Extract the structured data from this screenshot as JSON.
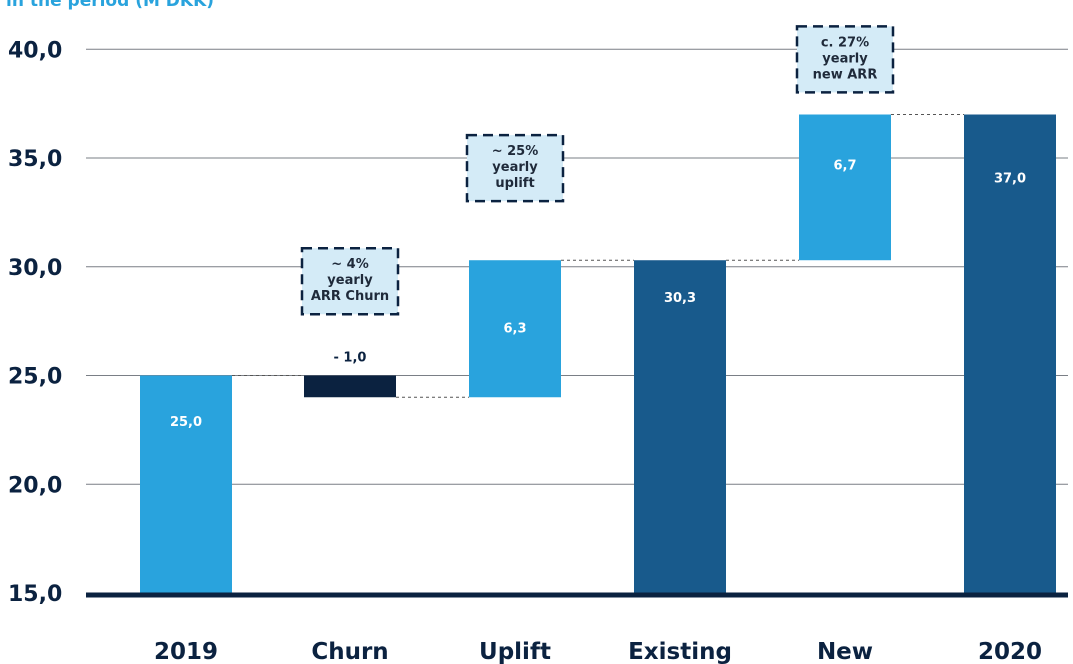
{
  "subtitle": "in the period (M DKK)",
  "colors": {
    "light_bar": "#29a3dd",
    "dark_bar": "#185a8c",
    "churn_bar": "#0b2240",
    "axis": "#0b2240",
    "grid": "#7a7f86",
    "annotation_fill": "#d4ebf7",
    "annotation_border": "#0b2240"
  },
  "chart_data": {
    "type": "bar",
    "subtype": "waterfall",
    "categories": [
      "2019",
      "Churn",
      "Uplift",
      "Existing",
      "New",
      "2020"
    ],
    "bars": [
      {
        "category": "2019",
        "base": 15.0,
        "top": 25.0,
        "label": "25,0",
        "style": "light"
      },
      {
        "category": "Churn",
        "base": 24.0,
        "top": 25.0,
        "label": "- 1,0",
        "style": "churn"
      },
      {
        "category": "Uplift",
        "base": 24.0,
        "top": 30.3,
        "label": "6,3",
        "style": "light"
      },
      {
        "category": "Existing",
        "base": 15.0,
        "top": 30.3,
        "label": "30,3",
        "style": "dark"
      },
      {
        "category": "New",
        "base": 30.3,
        "top": 37.0,
        "label": "6,7",
        "style": "light"
      },
      {
        "category": "2020",
        "base": 15.0,
        "top": 37.0,
        "label": "37,0",
        "style": "dark"
      }
    ],
    "connectors": [
      {
        "from": 0,
        "to": 1,
        "y": 25.0
      },
      {
        "from": 1,
        "to": 2,
        "y": 24.0
      },
      {
        "from": 2,
        "to": 3,
        "y": 30.3
      },
      {
        "from": 3,
        "to": 4,
        "y": 30.3
      },
      {
        "from": 4,
        "to": 5,
        "y": 37.0
      }
    ],
    "annotations": [
      {
        "category": "Churn",
        "lines": [
          "~ 4%",
          "yearly",
          "ARR Churn"
        ]
      },
      {
        "category": "Uplift",
        "lines": [
          "~ 25%",
          "yearly",
          "uplift"
        ]
      },
      {
        "category": "New",
        "lines": [
          "c. 27%",
          "yearly",
          "new ARR"
        ]
      }
    ],
    "yticks": [
      "15,0",
      "20,0",
      "25,0",
      "30,0",
      "35,0",
      "40,0"
    ],
    "ylim": [
      15,
      40
    ],
    "grid": true
  }
}
